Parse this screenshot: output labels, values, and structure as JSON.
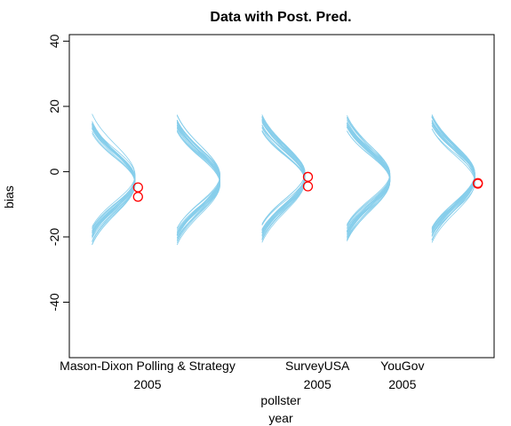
{
  "chart_data": {
    "type": "scatter",
    "title": "Data with Post. Pred.",
    "ylabel": "bias",
    "xlabel_lines": [
      "pollster",
      "year"
    ],
    "ylim": [
      -57,
      42
    ],
    "yticks": [
      -40,
      -20,
      0,
      20,
      40
    ],
    "grid": false,
    "groups": [
      {
        "pollster": "Mason-Dixon Polling & Strategy",
        "year": "2005",
        "center": -2.5
      },
      {
        "pollster": "",
        "year": "",
        "center": -2.5
      },
      {
        "pollster": "SurveyUSA",
        "year": "2005",
        "center": -1.5
      },
      {
        "pollster": "YouGov",
        "year": "2005",
        "center": -1.5
      },
      {
        "pollster": "",
        "year": "",
        "center": -2.0
      }
    ],
    "observed_points": [
      {
        "group": 0,
        "bias": -4.8
      },
      {
        "group": 0,
        "bias": -7.7
      },
      {
        "group": 2,
        "bias": -1.6
      },
      {
        "group": 2,
        "bias": -4.5
      },
      {
        "group": 4,
        "bias": -3.5
      },
      {
        "group": 4,
        "bias": -3.7
      }
    ],
    "posterior_predictive": {
      "curves_per_group": 20,
      "sd_range": [
        7.5,
        9.5
      ],
      "center_spread": 3
    },
    "colors": {
      "density": "#87ceeb",
      "points": "#ff0000",
      "axis": "#000000"
    }
  }
}
